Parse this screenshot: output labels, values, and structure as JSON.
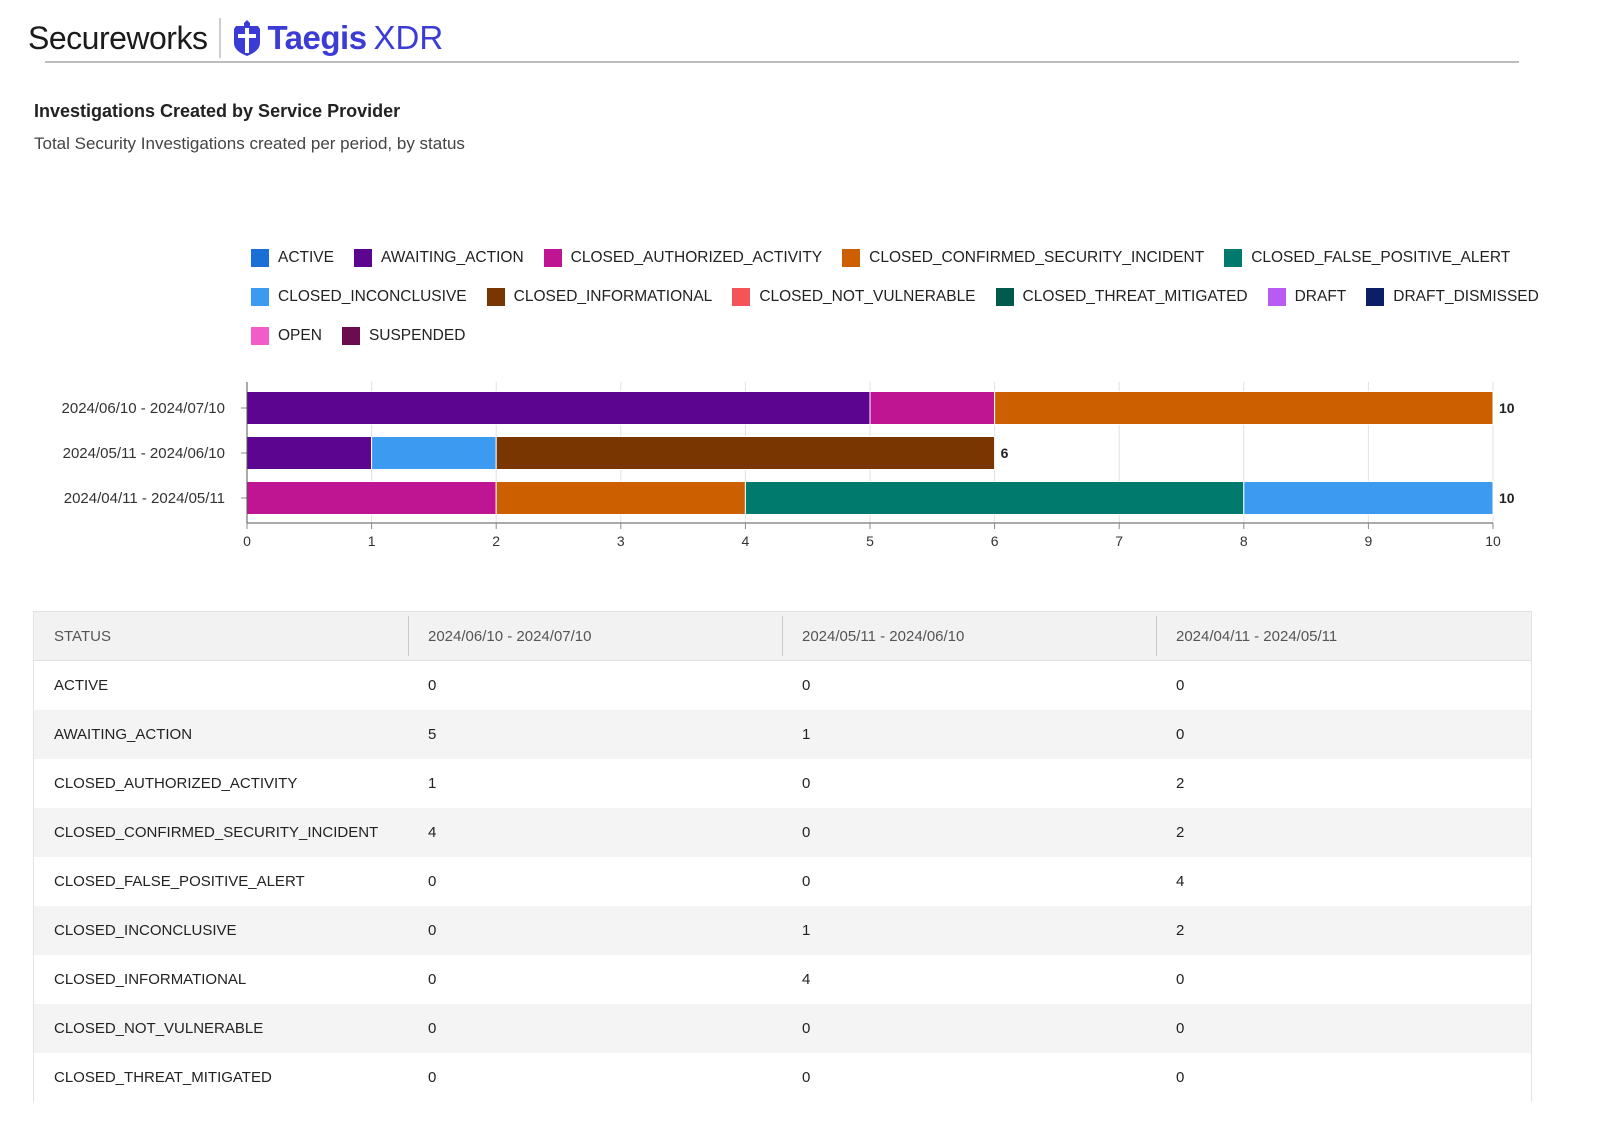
{
  "header": {
    "brand": "Secureworks",
    "product_name": "Taegis",
    "product_suffix": "XDR",
    "logo_icon": "taegis-shield-icon",
    "accent_color": "#3b3bd6"
  },
  "report": {
    "title": "Investigations Created by Service Provider",
    "subtitle": "Total Security Investigations created per period, by status"
  },
  "legend": {
    "rows": [
      [
        {
          "label": "ACTIVE",
          "color": "#1a6fd6"
        },
        {
          "label": "AWAITING_ACTION",
          "color": "#5c0590"
        },
        {
          "label": "CLOSED_AUTHORIZED_ACTIVITY",
          "color": "#c01592"
        },
        {
          "label": "CLOSED_CONFIRMED_SECURITY_INCIDENT",
          "color": "#cc5f00"
        },
        {
          "label": "CLOSED_FALSE_POSITIVE_ALERT",
          "color": "#007a6c"
        }
      ],
      [
        {
          "label": "CLOSED_INCONCLUSIVE",
          "color": "#3c9af0"
        },
        {
          "label": "CLOSED_INFORMATIONAL",
          "color": "#7a3600"
        },
        {
          "label": "CLOSED_NOT_VULNERABLE",
          "color": "#f45358"
        },
        {
          "label": "CLOSED_THREAT_MITIGATED",
          "color": "#005a4c"
        },
        {
          "label": "DRAFT",
          "color": "#b95af2"
        },
        {
          "label": "DRAFT_DISMISSED",
          "color": "#0c1f66"
        }
      ],
      [
        {
          "label": "OPEN",
          "color": "#f25cc8"
        },
        {
          "label": "SUSPENDED",
          "color": "#6b0c4e"
        }
      ]
    ]
  },
  "chart_data": {
    "type": "bar",
    "orientation": "horizontal",
    "stacked": true,
    "title": "Investigations Created by Service Provider",
    "subtitle": "Total Security Investigations created per period, by status",
    "categories": [
      "2024/06/10 - 2024/07/10",
      "2024/05/11 - 2024/06/10",
      "2024/04/11 - 2024/05/11"
    ],
    "xlim": [
      0,
      10
    ],
    "x_ticks": [
      0,
      1,
      2,
      3,
      4,
      5,
      6,
      7,
      8,
      9,
      10
    ],
    "grid": true,
    "legend_position": "top",
    "totals": [
      10,
      6,
      10
    ],
    "series": [
      {
        "name": "ACTIVE",
        "color": "#1a6fd6",
        "values": [
          0,
          0,
          0
        ]
      },
      {
        "name": "AWAITING_ACTION",
        "color": "#5c0590",
        "values": [
          5,
          1,
          0
        ]
      },
      {
        "name": "CLOSED_AUTHORIZED_ACTIVITY",
        "color": "#c01592",
        "values": [
          1,
          0,
          2
        ]
      },
      {
        "name": "CLOSED_CONFIRMED_SECURITY_INCIDENT",
        "color": "#cc5f00",
        "values": [
          4,
          0,
          2
        ]
      },
      {
        "name": "CLOSED_FALSE_POSITIVE_ALERT",
        "color": "#007a6c",
        "values": [
          0,
          0,
          4
        ]
      },
      {
        "name": "CLOSED_INCONCLUSIVE",
        "color": "#3c9af0",
        "values": [
          0,
          1,
          2
        ]
      },
      {
        "name": "CLOSED_INFORMATIONAL",
        "color": "#7a3600",
        "values": [
          0,
          4,
          0
        ]
      },
      {
        "name": "CLOSED_NOT_VULNERABLE",
        "color": "#f45358",
        "values": [
          0,
          0,
          0
        ]
      },
      {
        "name": "CLOSED_THREAT_MITIGATED",
        "color": "#005a4c",
        "values": [
          0,
          0,
          0
        ]
      },
      {
        "name": "DRAFT",
        "color": "#b95af2",
        "values": [
          0,
          0,
          0
        ]
      },
      {
        "name": "DRAFT_DISMISSED",
        "color": "#0c1f66",
        "values": [
          0,
          0,
          0
        ]
      },
      {
        "name": "OPEN",
        "color": "#f25cc8",
        "values": [
          0,
          0,
          0
        ]
      },
      {
        "name": "SUSPENDED",
        "color": "#6b0c4e",
        "values": [
          0,
          0,
          0
        ]
      }
    ]
  },
  "table": {
    "headers": [
      "STATUS",
      "2024/06/10 - 2024/07/10",
      "2024/05/11 - 2024/06/10",
      "2024/04/11 - 2024/05/11"
    ],
    "rows": [
      [
        "ACTIVE",
        "0",
        "0",
        "0"
      ],
      [
        "AWAITING_ACTION",
        "5",
        "1",
        "0"
      ],
      [
        "CLOSED_AUTHORIZED_ACTIVITY",
        "1",
        "0",
        "2"
      ],
      [
        "CLOSED_CONFIRMED_SECURITY_INCIDENT",
        "4",
        "0",
        "2"
      ],
      [
        "CLOSED_FALSE_POSITIVE_ALERT",
        "0",
        "0",
        "4"
      ],
      [
        "CLOSED_INCONCLUSIVE",
        "0",
        "1",
        "2"
      ],
      [
        "CLOSED_INFORMATIONAL",
        "0",
        "4",
        "0"
      ],
      [
        "CLOSED_NOT_VULNERABLE",
        "0",
        "0",
        "0"
      ],
      [
        "CLOSED_THREAT_MITIGATED",
        "0",
        "0",
        "0"
      ]
    ]
  }
}
